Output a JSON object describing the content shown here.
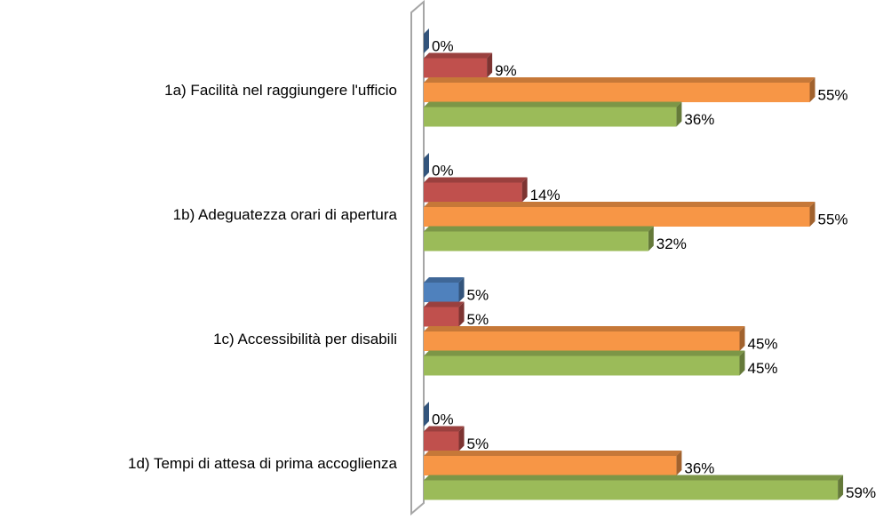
{
  "chart_data": {
    "type": "bar3d_horizontal",
    "categories": [
      "1a) Facilità nel raggiungere l'ufficio",
      "1b) Adeguatezza orari di apertura",
      "1c) Accessibilità per disabili",
      "1d) Tempi di attesa di prima accoglienza"
    ],
    "series": [
      {
        "color": "#4f81bd",
        "values": [
          0,
          0,
          5,
          0
        ],
        "value_labels": [
          "0%",
          "0%",
          "5%",
          "0%"
        ]
      },
      {
        "color": "#c0504d",
        "values": [
          9,
          14,
          5,
          5
        ],
        "value_labels": [
          "9%",
          "14%",
          "5%",
          "5%"
        ]
      },
      {
        "color": "#f79646",
        "values": [
          55,
          55,
          45,
          36
        ],
        "value_labels": [
          "55%",
          "55%",
          "45%",
          "36%"
        ]
      },
      {
        "color": "#9bbb59",
        "values": [
          36,
          32,
          45,
          59
        ],
        "value_labels": [
          "36%",
          "32%",
          "45%",
          "59%"
        ]
      }
    ],
    "xlim": [
      0,
      60
    ]
  }
}
